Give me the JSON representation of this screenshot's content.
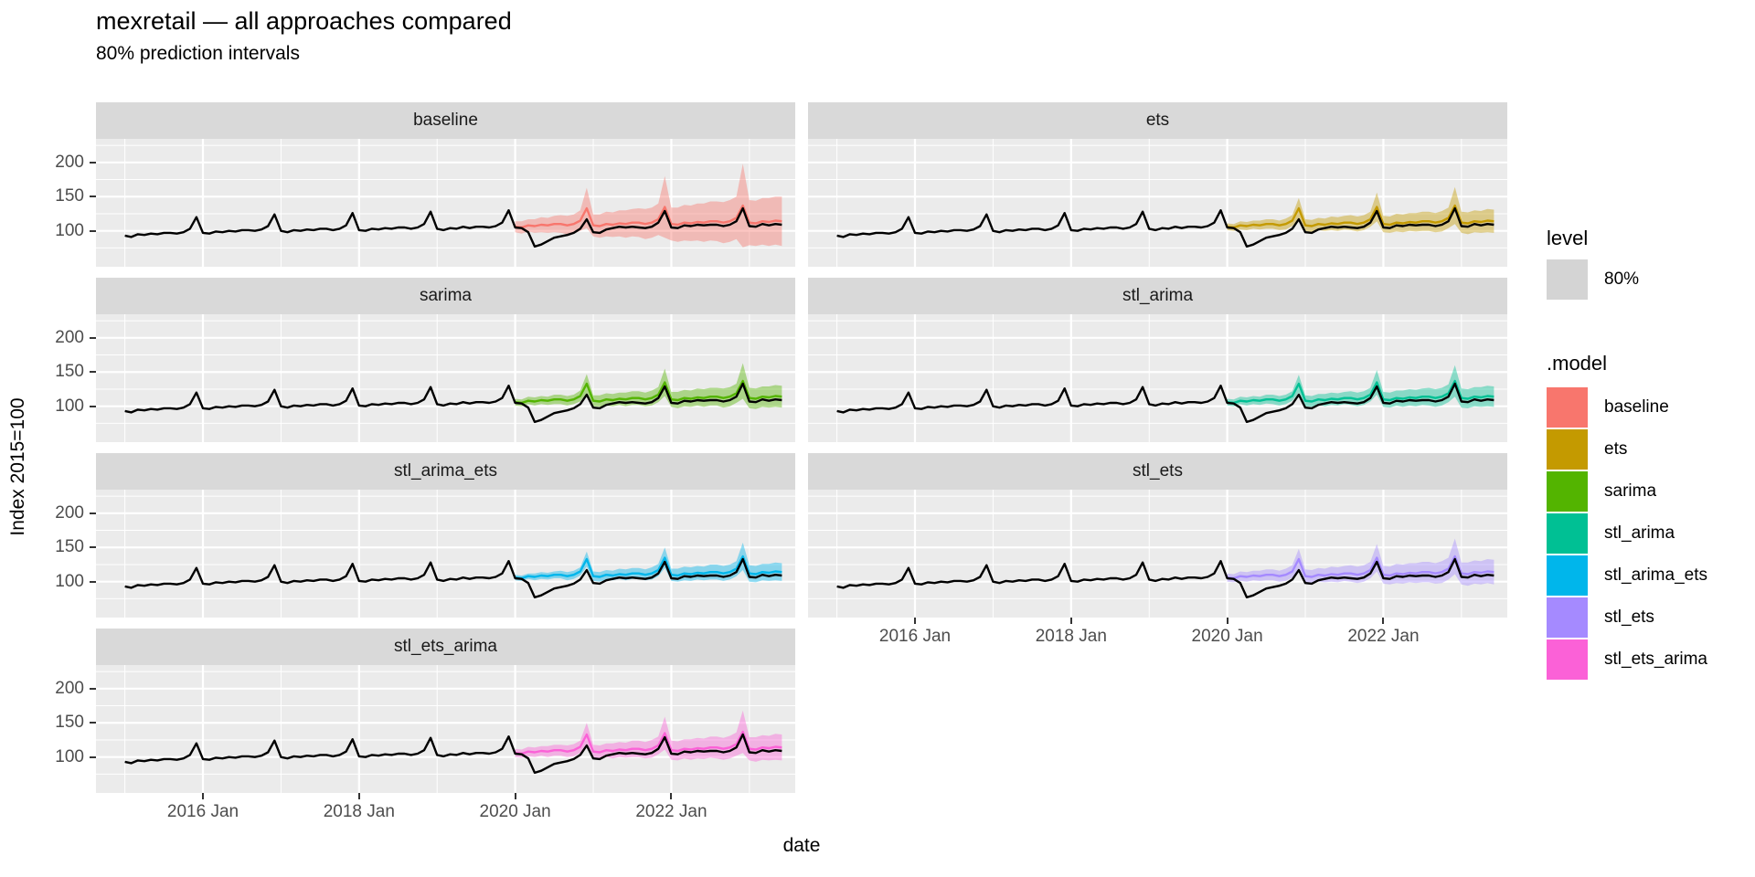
{
  "legend": {
    "level_title": "level",
    "level_items": [
      {
        "label": "80%",
        "color": "#D4D4D4"
      }
    ],
    "model_title": ".model"
  },
  "theme": {
    "panel_bg": "#EBEBEB",
    "strip_bg": "#D9D9D9",
    "grid_color": "#FFFFFF",
    "axis_text_color": "#4D4D4D",
    "tick_mark_color": "#333333",
    "actual_line_color": "#000000"
  },
  "chart_data": {
    "type": "line",
    "title": "mexretail — all approaches compared",
    "subtitle": "80% prediction intervals",
    "xlabel": "date",
    "ylabel": "Index 2015=100",
    "interval_level": "80%",
    "frequency": "monthly",
    "x_start": "2015-01",
    "x_end": "2023-06",
    "forecast_start": "2020-01",
    "x_tick_labels": [
      "2016 Jan",
      "2018 Jan",
      "2020 Jan",
      "2022 Jan"
    ],
    "x_tick_month_index": [
      12,
      36,
      60,
      84
    ],
    "x_minor_month_index": [
      0,
      24,
      48,
      72,
      96
    ],
    "y_major_ticks": [
      200,
      150,
      100
    ],
    "y_minor_ticks": [
      75,
      125,
      175,
      225
    ],
    "ylim": [
      47.5,
      234.5
    ],
    "grid": true,
    "legend_position": "right",
    "ribbon_opacity": 0.42,
    "facets": [
      "baseline",
      "ets",
      "sarima",
      "stl_arima",
      "stl_arima_ets",
      "stl_ets",
      "stl_ets_arima"
    ],
    "actual_series_name": "observed",
    "actual": [
      93,
      91,
      95,
      94,
      96,
      95,
      97,
      97,
      96,
      98,
      103,
      120,
      97,
      96,
      99,
      98,
      100,
      99,
      101,
      101,
      100,
      102,
      107,
      124,
      100,
      98,
      101,
      100,
      102,
      101,
      103,
      103,
      101,
      103,
      108,
      126,
      101,
      100,
      103,
      102,
      104,
      103,
      105,
      105,
      103,
      105,
      110,
      128,
      103,
      101,
      104,
      103,
      106,
      104,
      106,
      106,
      105,
      107,
      112,
      130,
      105,
      104,
      98,
      77,
      80,
      85,
      90,
      92,
      94,
      97,
      103,
      117,
      98,
      97,
      102,
      104,
      106,
      105,
      106,
      105,
      104,
      106,
      112,
      129,
      105,
      104,
      108,
      107,
      109,
      108,
      109,
      109,
      107,
      109,
      114,
      133,
      107,
      106,
      110,
      108,
      110,
      109
    ],
    "forecast_mean": [
      106,
      105,
      108,
      107,
      109,
      108,
      110,
      110,
      108,
      110,
      115,
      133,
      108,
      107,
      110,
      109,
      111,
      110,
      112,
      112,
      110,
      112,
      117,
      135,
      110,
      109,
      112,
      111,
      113,
      112,
      114,
      114,
      112,
      114,
      119,
      137,
      112,
      111,
      114,
      113,
      115,
      114
    ],
    "models": [
      {
        "name": "baseline",
        "color": "#F8766D",
        "lo": [
          98,
          96,
          99,
          97,
          98,
          97,
          98,
          97,
          95,
          96,
          100,
          104,
          92,
          90,
          92,
          91,
          92,
          90,
          92,
          91,
          88,
          90,
          94,
          90,
          86,
          84,
          86,
          85,
          86,
          84,
          86,
          85,
          82,
          84,
          88,
          76,
          79,
          78,
          80,
          78,
          80,
          78
        ],
        "hi": [
          114,
          114,
          117,
          117,
          120,
          119,
          122,
          123,
          122,
          124,
          130,
          163,
          124,
          124,
          128,
          127,
          130,
          130,
          132,
          133,
          132,
          134,
          140,
          180,
          134,
          134,
          138,
          137,
          140,
          140,
          143,
          143,
          142,
          145,
          150,
          198,
          145,
          144,
          148,
          148,
          150,
          150
        ]
      },
      {
        "name": "ets",
        "color": "#C49A00",
        "lo": [
          101,
          100,
          102,
          101,
          103,
          102,
          103,
          103,
          101,
          102,
          107,
          118,
          100,
          98,
          101,
          100,
          101,
          100,
          102,
          101,
          99,
          101,
          106,
          114,
          98,
          97,
          99,
          98,
          100,
          99,
          100,
          100,
          98,
          99,
          104,
          110,
          97,
          95,
          98,
          97,
          98,
          97
        ],
        "hi": [
          111,
          110,
          114,
          113,
          115,
          115,
          117,
          117,
          115,
          118,
          123,
          148,
          117,
          116,
          119,
          118,
          121,
          120,
          122,
          123,
          121,
          123,
          128,
          156,
          122,
          121,
          125,
          124,
          126,
          126,
          128,
          128,
          126,
          129,
          134,
          164,
          128,
          127,
          130,
          129,
          132,
          131
        ]
      },
      {
        "name": "sarima",
        "color": "#53B400",
        "lo": [
          101,
          100,
          103,
          101,
          103,
          102,
          103,
          103,
          101,
          103,
          107,
          119,
          100,
          99,
          101,
          100,
          102,
          100,
          102,
          102,
          100,
          101,
          106,
          115,
          99,
          97,
          100,
          99,
          101,
          99,
          101,
          101,
          98,
          100,
          105,
          111,
          97,
          96,
          99,
          98,
          99,
          98
        ],
        "hi": [
          111,
          110,
          114,
          113,
          115,
          114,
          117,
          117,
          115,
          117,
          123,
          147,
          116,
          116,
          119,
          118,
          120,
          120,
          122,
          122,
          120,
          123,
          128,
          155,
          121,
          121,
          124,
          123,
          126,
          125,
          127,
          127,
          126,
          128,
          133,
          163,
          127,
          126,
          129,
          129,
          131,
          130
        ]
      },
      {
        "name": "stl_arima",
        "color": "#00C094",
        "lo": [
          101,
          100,
          103,
          101,
          103,
          102,
          104,
          103,
          101,
          103,
          108,
          120,
          100,
          99,
          102,
          100,
          102,
          101,
          103,
          102,
          100,
          102,
          107,
          117,
          99,
          98,
          101,
          99,
          101,
          100,
          102,
          101,
          99,
          101,
          106,
          114,
          98,
          97,
          100,
          99,
          100,
          99
        ],
        "hi": [
          111,
          110,
          114,
          113,
          115,
          114,
          117,
          117,
          115,
          117,
          122,
          146,
          116,
          115,
          118,
          118,
          120,
          119,
          121,
          122,
          120,
          122,
          127,
          153,
          121,
          120,
          123,
          123,
          125,
          124,
          126,
          127,
          125,
          127,
          132,
          160,
          126,
          125,
          128,
          128,
          130,
          129
        ]
      },
      {
        "name": "stl_arima_ets",
        "color": "#00B6EB",
        "lo": [
          102,
          101,
          104,
          102,
          104,
          103,
          105,
          105,
          102,
          104,
          109,
          122,
          101,
          100,
          103,
          102,
          104,
          102,
          104,
          104,
          102,
          103,
          108,
          120,
          101,
          100,
          102,
          101,
          103,
          102,
          103,
          103,
          101,
          103,
          108,
          117,
          100,
          99,
          102,
          101,
          102,
          101
        ],
        "hi": [
          110,
          109,
          112,
          112,
          114,
          113,
          115,
          116,
          114,
          116,
          121,
          144,
          115,
          114,
          117,
          116,
          119,
          118,
          120,
          120,
          118,
          121,
          126,
          150,
          119,
          119,
          122,
          121,
          123,
          122,
          125,
          125,
          123,
          125,
          130,
          157,
          124,
          123,
          126,
          126,
          128,
          127
        ]
      },
      {
        "name": "stl_ets",
        "color": "#A58AFF",
        "lo": [
          100,
          99,
          101,
          100,
          102,
          101,
          102,
          102,
          100,
          101,
          106,
          118,
          99,
          97,
          100,
          99,
          100,
          99,
          101,
          100,
          98,
          100,
          105,
          115,
          97,
          96,
          98,
          97,
          99,
          98,
          99,
          99,
          97,
          98,
          103,
          111,
          96,
          94,
          97,
          96,
          98,
          96
        ],
        "hi": [
          112,
          111,
          115,
          114,
          116,
          116,
          118,
          118,
          116,
          119,
          124,
          148,
          118,
          117,
          120,
          119,
          122,
          121,
          123,
          124,
          122,
          124,
          129,
          155,
          123,
          122,
          126,
          125,
          127,
          127,
          129,
          129,
          127,
          130,
          135,
          163,
          128,
          128,
          131,
          130,
          133,
          132
        ]
      },
      {
        "name": "stl_ets_arima",
        "color": "#FB61D7",
        "lo": [
          100,
          99,
          101,
          100,
          102,
          100,
          102,
          102,
          100,
          101,
          106,
          116,
          98,
          97,
          100,
          98,
          100,
          99,
          100,
          100,
          98,
          99,
          104,
          111,
          96,
          95,
          98,
          96,
          98,
          97,
          99,
          98,
          96,
          98,
          102,
          106,
          95,
          93,
          96,
          95,
          96,
          95
        ],
        "hi": [
          112,
          111,
          115,
          114,
          116,
          116,
          118,
          118,
          117,
          119,
          124,
          150,
          118,
          117,
          120,
          120,
          122,
          121,
          124,
          124,
          122,
          125,
          130,
          159,
          124,
          123,
          126,
          126,
          128,
          127,
          130,
          130,
          128,
          131,
          136,
          168,
          129,
          129,
          132,
          131,
          134,
          133
        ]
      }
    ]
  }
}
